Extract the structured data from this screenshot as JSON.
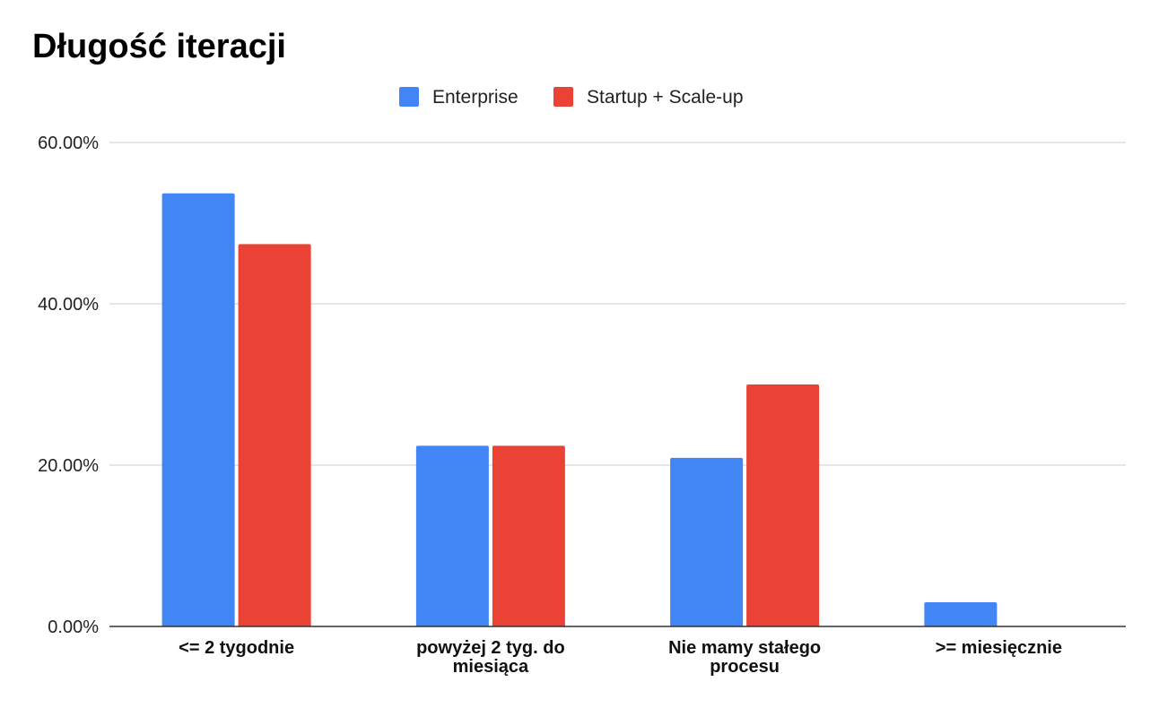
{
  "chart_data": {
    "type": "bar",
    "title": "Długość iteracji",
    "categories": [
      [
        "<= 2 tygodnie"
      ],
      [
        "powyżej 2 tyg. do",
        "miesiąca"
      ],
      [
        "Nie mamy stałego",
        "procesu"
      ],
      [
        ">= miesięcznie"
      ]
    ],
    "series": [
      {
        "name": "Enterprise",
        "color": "#4285F4",
        "values": [
          53.7,
          22.4,
          20.9,
          3.0
        ]
      },
      {
        "name": "Startup + Scale-up",
        "color": "#EA4335",
        "values": [
          47.4,
          22.4,
          30.0,
          0.0
        ]
      }
    ],
    "ylim": [
      0,
      60
    ],
    "yticks": [
      {
        "value": 0,
        "label": "0.00%"
      },
      {
        "value": 20,
        "label": "20.00%"
      },
      {
        "value": 40,
        "label": "40.00%"
      },
      {
        "value": 60,
        "label": "60.00%"
      }
    ],
    "xlabel": "",
    "ylabel": "",
    "grid": true,
    "legend_position": "top-center"
  }
}
